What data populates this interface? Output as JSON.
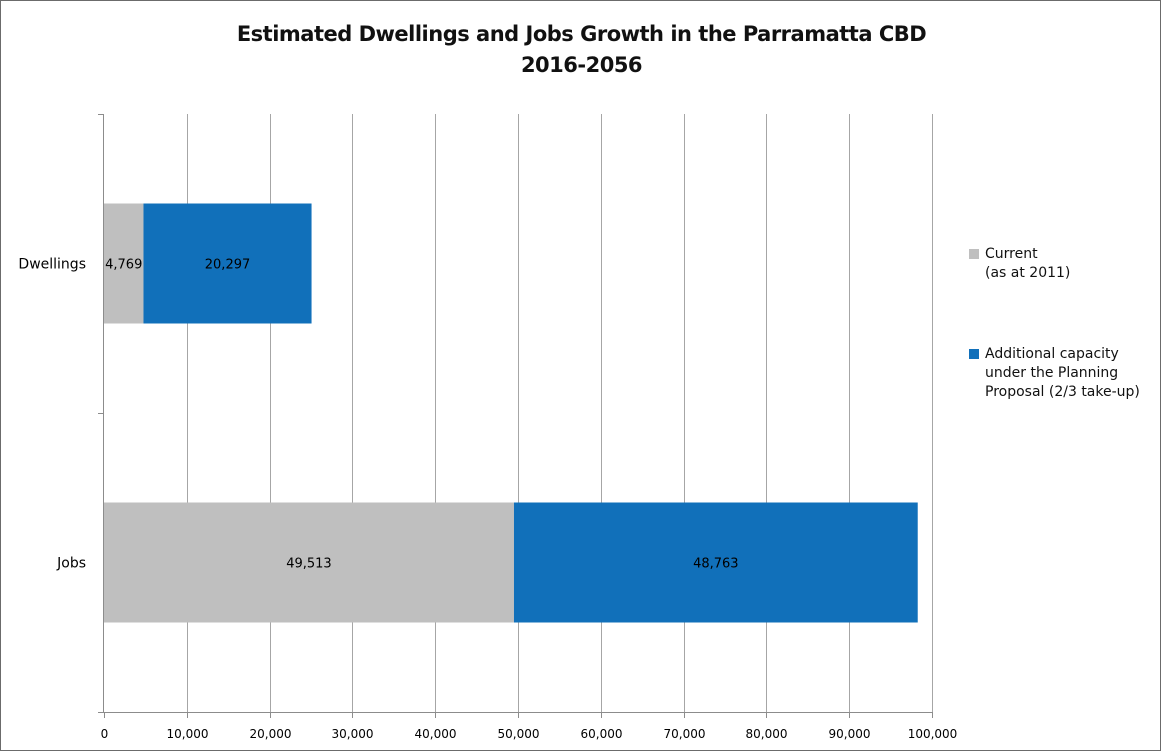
{
  "chart_data": {
    "type": "bar",
    "orientation": "horizontal",
    "stacked": true,
    "title": "Estimated Dwellings and Jobs Growth in the Parramatta CBD",
    "subtitle": "2016-2056",
    "categories": [
      "Dwellings",
      "Jobs"
    ],
    "series": [
      {
        "name": "Current (as at 2011)",
        "name_lines": [
          "Current",
          "(as at 2011)"
        ],
        "values": [
          4769,
          49513
        ],
        "labels": [
          "4,769",
          "49,513"
        ],
        "color": "#bfbfbf"
      },
      {
        "name": "Additional capacity under the Planning Proposal (2/3 take-up)",
        "name_lines": [
          "Additional capacity",
          "under the Planning",
          "Proposal (2/3 take-up)"
        ],
        "values": [
          20297,
          48763
        ],
        "labels": [
          "20,297",
          "48,763"
        ],
        "color": "#1170ba"
      }
    ],
    "xlim": [
      0,
      100000
    ],
    "xticks": [
      0,
      10000,
      20000,
      30000,
      40000,
      50000,
      60000,
      70000,
      80000,
      90000,
      100000
    ],
    "xtick_labels": [
      "0",
      "10,000",
      "20,000",
      "30,000",
      "40,000",
      "50,000",
      "60,000",
      "70,000",
      "80,000",
      "90,000",
      "100,000"
    ],
    "xlabel": "",
    "ylabel": "",
    "grid": "vertical",
    "legend": "right"
  }
}
